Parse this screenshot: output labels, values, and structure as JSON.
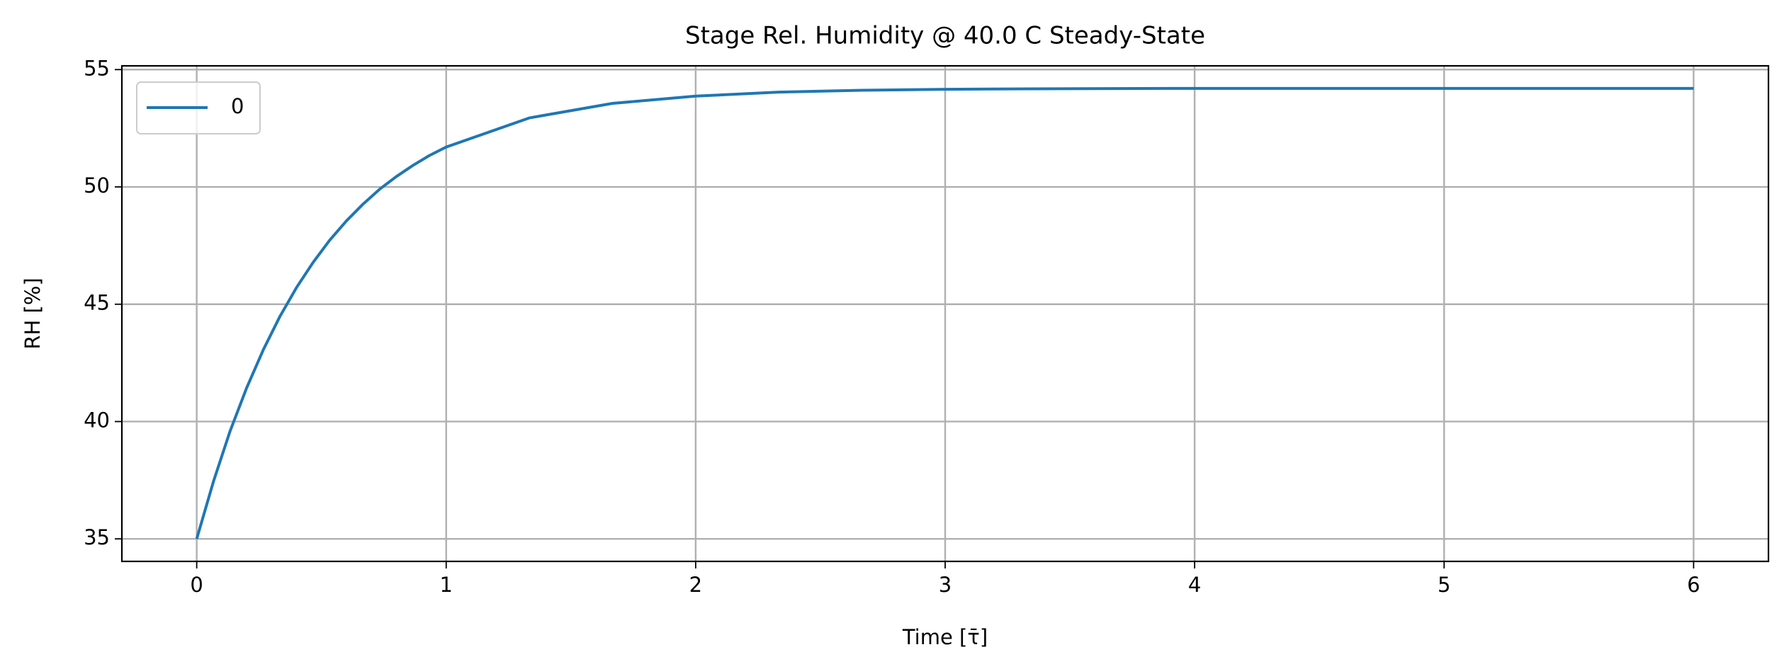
{
  "chart_data": {
    "type": "line",
    "title": "Stage Rel. Humidity @ 40.0 C Steady-State",
    "x_label": "Time [τ̄]",
    "y_label": "RH [%]",
    "x": [
      0,
      0.067,
      0.133,
      0.2,
      0.267,
      0.333,
      0.4,
      0.467,
      0.533,
      0.6,
      0.667,
      0.733,
      0.8,
      0.867,
      0.933,
      1,
      1.333,
      1.667,
      2,
      2.333,
      2.667,
      3,
      3.333,
      3.667,
      4,
      4.333,
      4.667,
      5,
      5.333,
      5.667,
      6
    ],
    "series": [
      {
        "name": "0",
        "color": "#1f77b4",
        "values": [
          35,
          37.44,
          39.57,
          41.43,
          43.06,
          44.47,
          45.71,
          46.79,
          47.73,
          48.55,
          49.27,
          49.9,
          50.44,
          50.92,
          51.34,
          51.7,
          52.94,
          53.56,
          53.87,
          54.04,
          54.12,
          54.16,
          54.18,
          54.19,
          54.2,
          54.2,
          54.2,
          54.2,
          54.2,
          54.2,
          54.2
        ]
      }
    ],
    "xlim": [
      -0.3,
      6.3
    ],
    "ylim": [
      34.04,
      55.16
    ],
    "xticks": [
      0,
      1,
      2,
      3,
      4,
      5,
      6
    ],
    "yticks": [
      35,
      40,
      45,
      50,
      55
    ],
    "grid": true,
    "legend": "upper left"
  }
}
